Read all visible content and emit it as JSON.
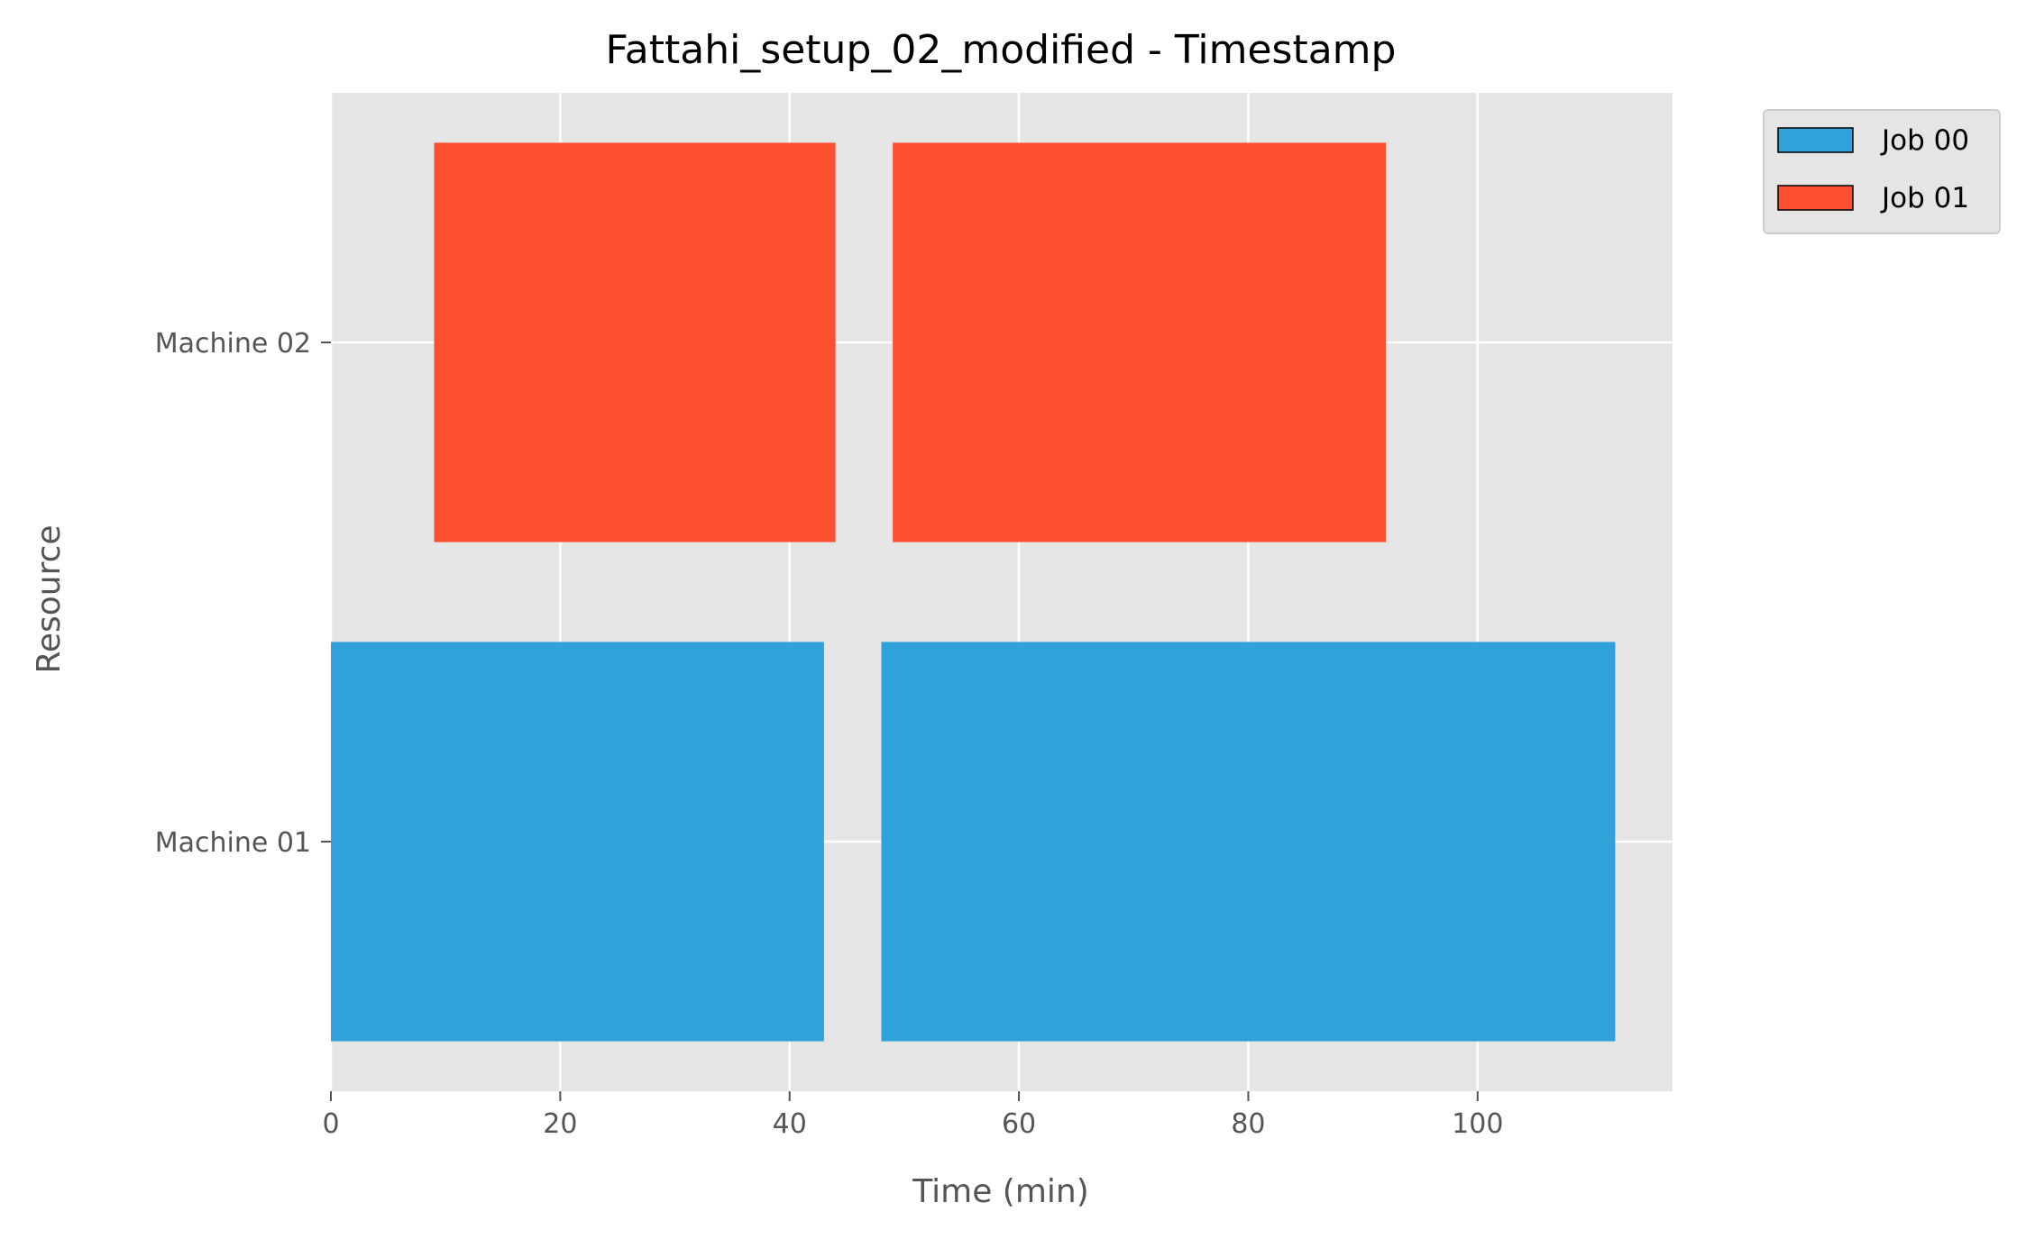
{
  "chart_data": {
    "type": "bar",
    "orientation": "horizontal",
    "title": "Fattahi_setup_02_modified - Timestamp",
    "xlabel": "Time (min)",
    "ylabel": "Resource",
    "xlim": [
      0,
      117
    ],
    "xticks": [
      0,
      20,
      40,
      60,
      80,
      100
    ],
    "categories": [
      "Machine 01",
      "Machine 02"
    ],
    "grid": true,
    "legend_position": "outside-top-right",
    "series": [
      {
        "name": "Job 00",
        "color": "#30A2DA",
        "tasks": [
          {
            "resource": "Machine 01",
            "start": 0,
            "end": 43
          },
          {
            "resource": "Machine 01",
            "start": 48,
            "end": 112
          }
        ]
      },
      {
        "name": "Job 01",
        "color": "#FC4F30",
        "tasks": [
          {
            "resource": "Machine 02",
            "start": 9,
            "end": 44
          },
          {
            "resource": "Machine 02",
            "start": 49,
            "end": 92
          }
        ]
      }
    ]
  }
}
